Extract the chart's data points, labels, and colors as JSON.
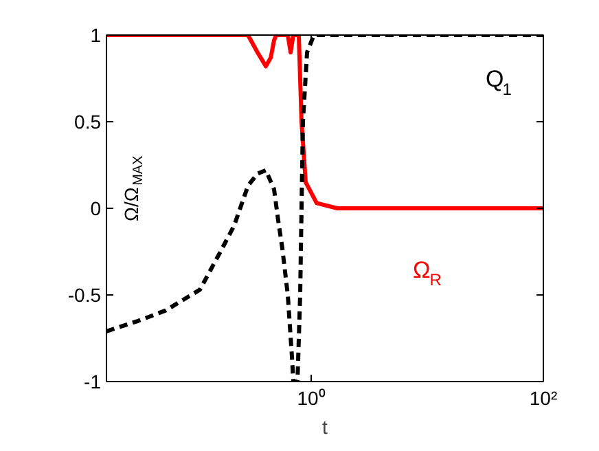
{
  "chart_data": {
    "type": "line",
    "log": "x",
    "xlabel": "t",
    "ylabel": "Ω/Ω$_{MAX}$",
    "xlim": [
      0.01725,
      100
    ],
    "ylim": [
      -1,
      1
    ],
    "xticks": [
      {
        "value": 1,
        "label": "10⁰"
      },
      {
        "value": 100,
        "label": "10²"
      }
    ],
    "yticks": [
      -1,
      -0.5,
      0,
      0.5,
      1
    ],
    "grid": false,
    "series": [
      {
        "name": "Ω$_{R}$",
        "color": "#ff0000",
        "line_style": "solid",
        "x": [
          0.01725,
          0.2855,
          0.345,
          0.407,
          0.449,
          0.479,
          0.5,
          0.629,
          0.665,
          0.702,
          0.782,
          0.826,
          0.897,
          1.115,
          1.68,
          100
        ],
        "values": [
          1,
          1,
          0.9,
          0.82,
          0.87,
          0.97,
          1,
          1,
          0.9,
          1,
          1,
          0.5,
          0.15,
          0.03,
          0,
          0
        ]
      },
      {
        "name": "Q$_{1}$",
        "color": "#000000",
        "line_style": "dashed",
        "x": [
          0.01725,
          0.0323,
          0.0557,
          0.11,
          0.1655,
          0.217,
          0.2855,
          0.345,
          0.407,
          0.479,
          0.52,
          0.564,
          0.629,
          0.682,
          0.702,
          0.762,
          0.804,
          0.826,
          0.849,
          0.922,
          1.056,
          100
        ],
        "values": [
          -0.71,
          -0.65,
          -0.59,
          -0.47,
          -0.25,
          -0.1,
          0.13,
          0.2,
          0.22,
          0.11,
          -0.07,
          -0.23,
          -0.5,
          -0.85,
          -1,
          -1,
          -0.5,
          0,
          0.5,
          0.9,
          1,
          1
        ]
      }
    ]
  }
}
